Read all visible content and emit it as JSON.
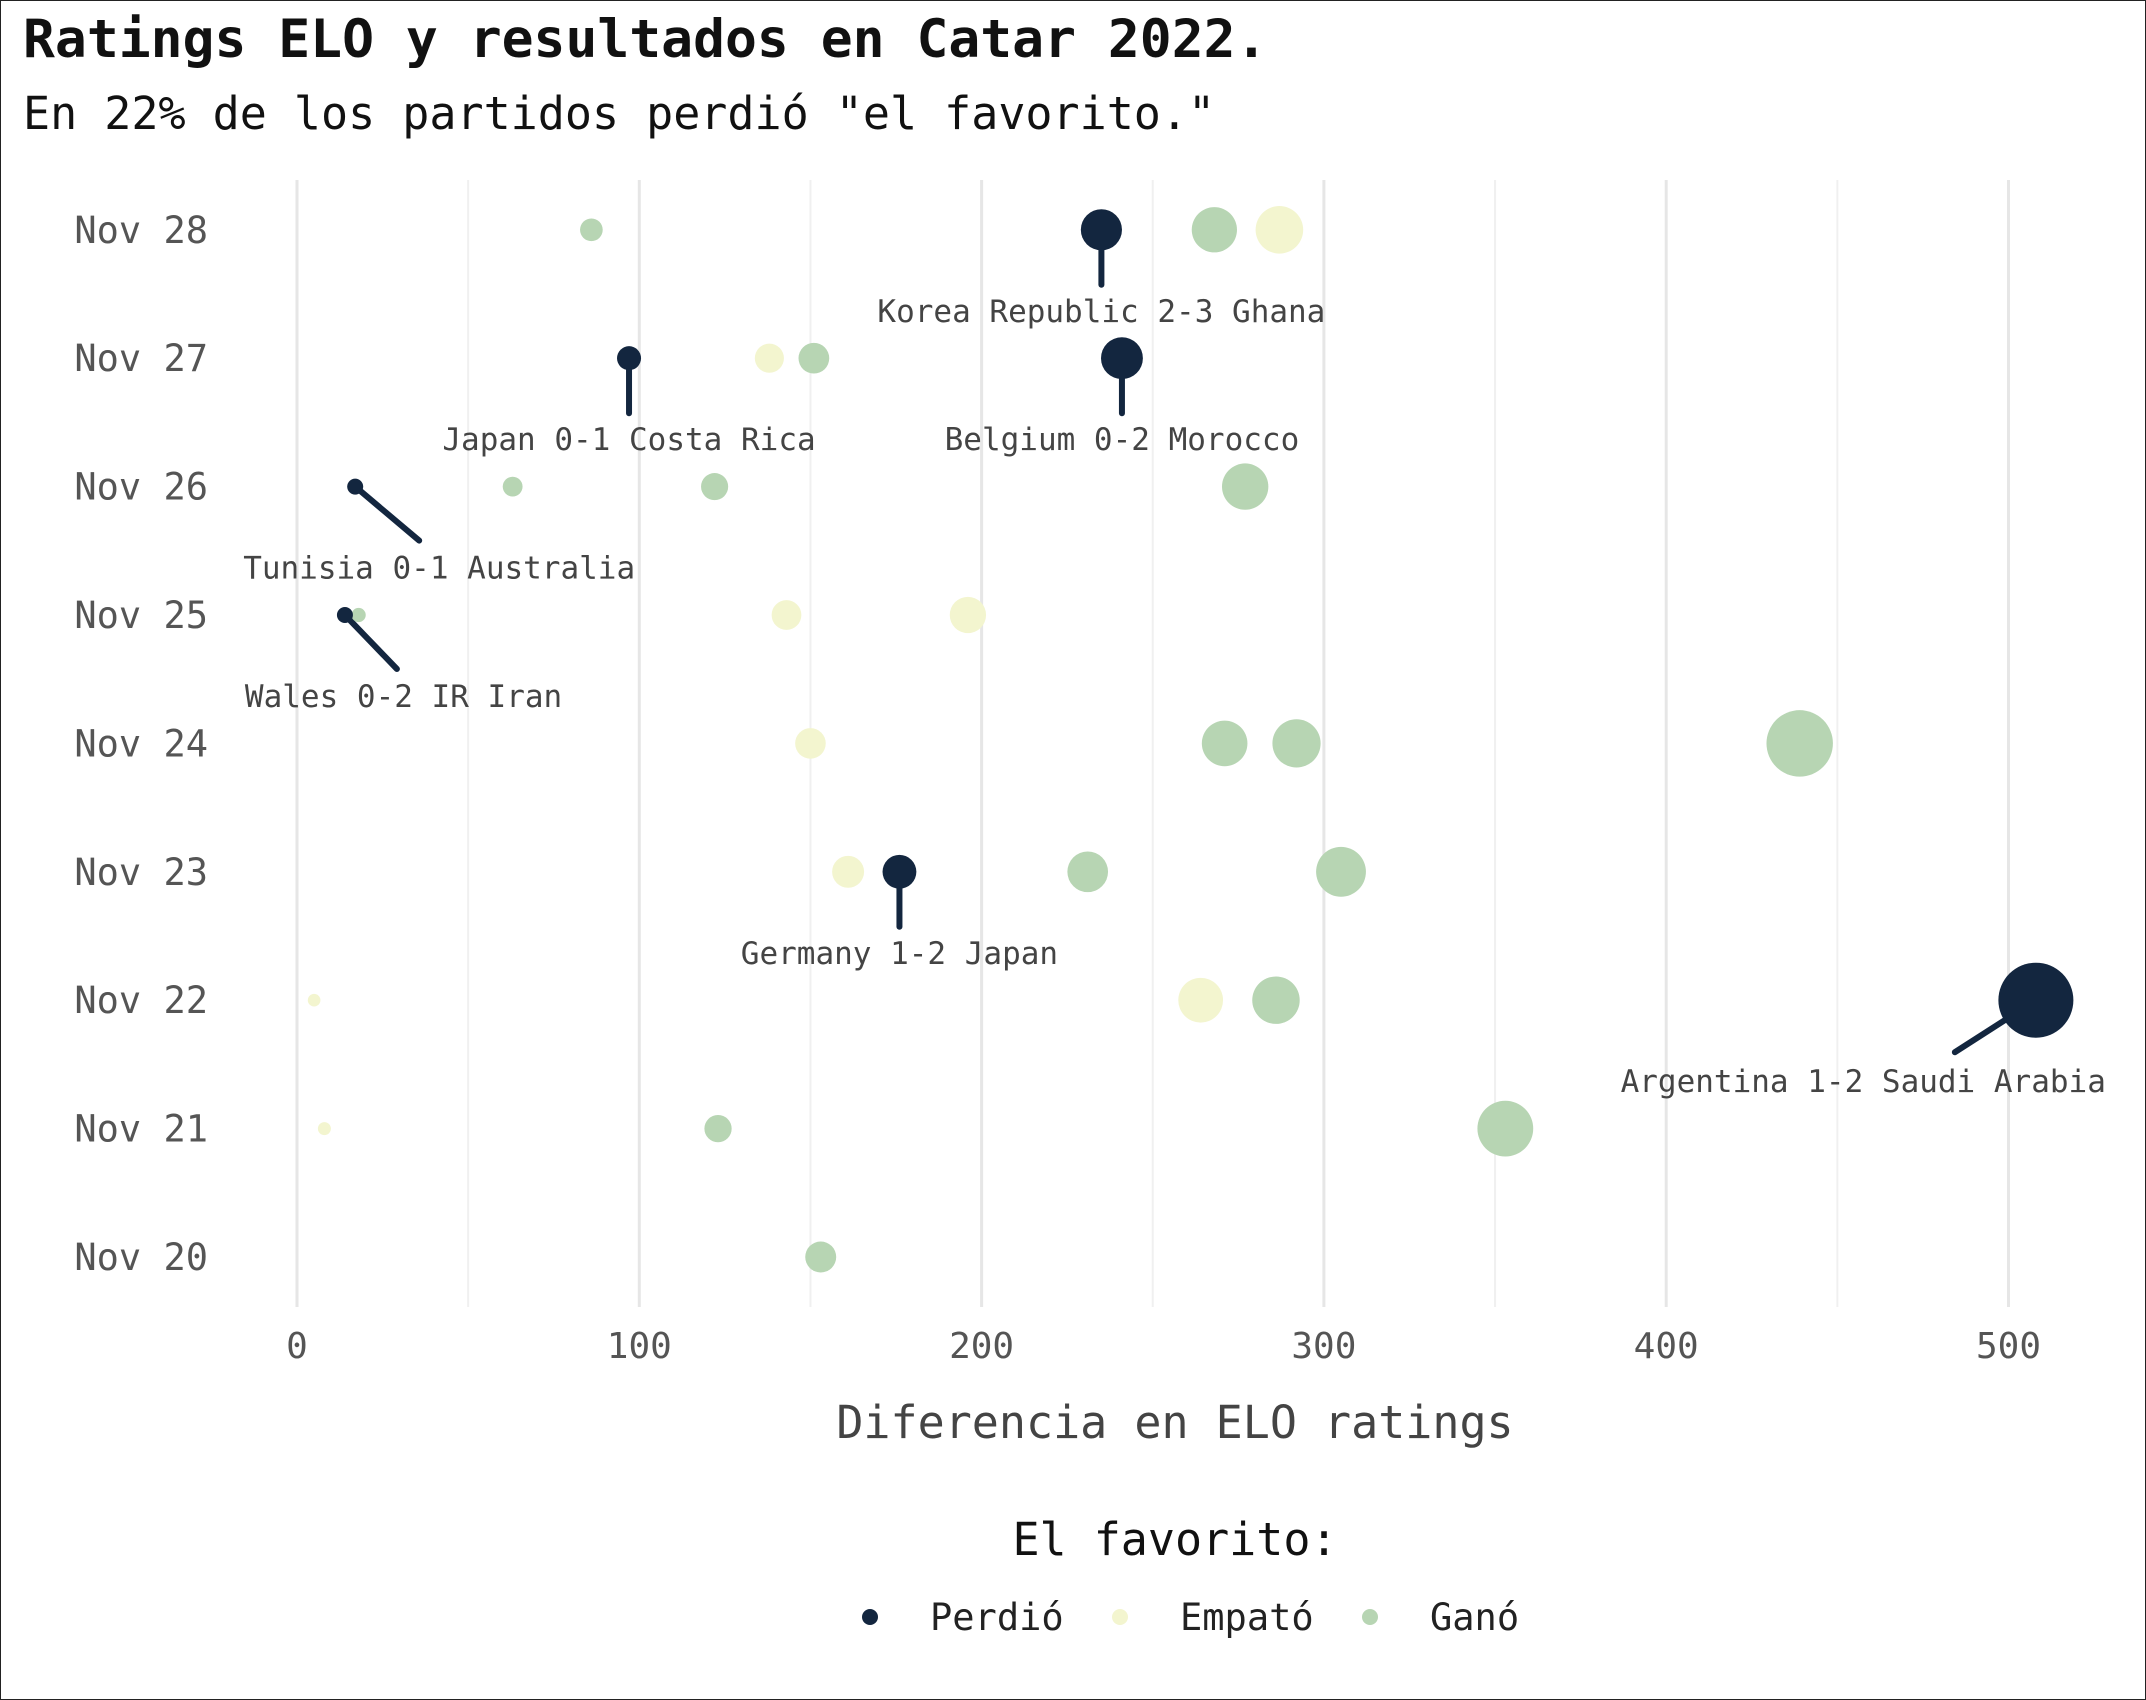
{
  "title": "Ratings ELO y resultados en Catar 2022.",
  "subtitle": "En 22% de los partidos perdió \"el favorito.\"",
  "chart_data": {
    "type": "scatter",
    "xlabel": "Diferencia en ELO ratings",
    "ylabel": "",
    "xlim": [
      -15,
      525
    ],
    "x_ticks": [
      0,
      100,
      200,
      300,
      400,
      500
    ],
    "categories": [
      "Nov 20",
      "Nov 21",
      "Nov 22",
      "Nov 23",
      "Nov 24",
      "Nov 25",
      "Nov 26",
      "Nov 27",
      "Nov 28"
    ],
    "grid": "vertical",
    "legend": {
      "title": "El favorito:",
      "placement": "bottom",
      "entries": [
        {
          "key": "lost",
          "label": "Perdió",
          "color": "#13263f"
        },
        {
          "key": "drew",
          "label": "Empató",
          "color": "#f3f5cf"
        },
        {
          "key": "won",
          "label": "Ganó",
          "color": "#b7d5b3"
        }
      ]
    },
    "points": [
      {
        "date": "Nov 20",
        "x": 153,
        "result": "won"
      },
      {
        "date": "Nov 21",
        "x": 8,
        "result": "drew"
      },
      {
        "date": "Nov 21",
        "x": 123,
        "result": "won"
      },
      {
        "date": "Nov 21",
        "x": 353,
        "result": "won"
      },
      {
        "date": "Nov 22",
        "x": 5,
        "result": "drew"
      },
      {
        "date": "Nov 22",
        "x": 264,
        "result": "drew"
      },
      {
        "date": "Nov 22",
        "x": 286,
        "result": "won"
      },
      {
        "date": "Nov 22",
        "x": 508,
        "result": "lost",
        "label": "Argentina 1-2 Saudi Arabia"
      },
      {
        "date": "Nov 23",
        "x": 161,
        "result": "drew"
      },
      {
        "date": "Nov 23",
        "x": 176,
        "result": "lost",
        "label": "Germany 1-2 Japan"
      },
      {
        "date": "Nov 23",
        "x": 231,
        "result": "won"
      },
      {
        "date": "Nov 23",
        "x": 305,
        "result": "won"
      },
      {
        "date": "Nov 24",
        "x": 150,
        "result": "drew"
      },
      {
        "date": "Nov 24",
        "x": 271,
        "result": "won"
      },
      {
        "date": "Nov 24",
        "x": 292,
        "result": "won"
      },
      {
        "date": "Nov 24",
        "x": 439,
        "result": "won"
      },
      {
        "date": "Nov 25",
        "x": 18,
        "result": "won"
      },
      {
        "date": "Nov 25",
        "x": 14,
        "result": "lost",
        "label": "Wales 0-2 IR Iran"
      },
      {
        "date": "Nov 25",
        "x": 143,
        "result": "drew"
      },
      {
        "date": "Nov 25",
        "x": 196,
        "result": "drew"
      },
      {
        "date": "Nov 26",
        "x": 17,
        "result": "lost",
        "label": "Tunisia 0-1 Australia"
      },
      {
        "date": "Nov 26",
        "x": 63,
        "result": "won"
      },
      {
        "date": "Nov 26",
        "x": 122,
        "result": "won"
      },
      {
        "date": "Nov 26",
        "x": 277,
        "result": "won"
      },
      {
        "date": "Nov 27",
        "x": 97,
        "result": "lost",
        "label": "Japan 0-1 Costa Rica"
      },
      {
        "date": "Nov 27",
        "x": 138,
        "result": "drew"
      },
      {
        "date": "Nov 27",
        "x": 151,
        "result": "won"
      },
      {
        "date": "Nov 27",
        "x": 241,
        "result": "lost",
        "label": "Belgium 0-2 Morocco"
      },
      {
        "date": "Nov 28",
        "x": 86,
        "result": "won"
      },
      {
        "date": "Nov 28",
        "x": 235,
        "result": "lost",
        "label": "Korea Republic 2-3 Ghana"
      },
      {
        "date": "Nov 28",
        "x": 268,
        "result": "won"
      },
      {
        "date": "Nov 28",
        "x": 287,
        "result": "drew"
      }
    ]
  }
}
